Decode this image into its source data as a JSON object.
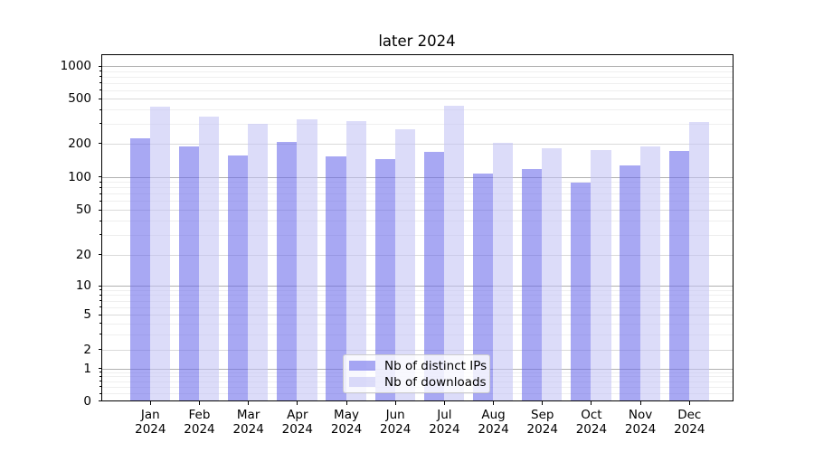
{
  "title": "later 2024",
  "colors": {
    "ips_bar": "rgba(105,105,235,0.58)",
    "downloads_bar": "rgba(195,195,245,0.58)",
    "grid_power": "#b0b0b0",
    "grid_major": "#dadada",
    "grid_minor": "#efefef",
    "spine": "#000000",
    "legend_border": "#cccccc",
    "legend_bg": "rgba(255,255,255,0.8)",
    "text": "#000000"
  },
  "legend": {
    "items": [
      {
        "label": "Nb of distinct IPs",
        "color": "ips_bar"
      },
      {
        "label": "Nb of downloads",
        "color": "downloads_bar"
      }
    ]
  },
  "chart_data": {
    "type": "bar",
    "title": "later 2024",
    "categories": [
      "Jan 2024",
      "Feb 2024",
      "Mar 2024",
      "Apr 2024",
      "May 2024",
      "Jun 2024",
      "Jul 2024",
      "Aug 2024",
      "Sep 2024",
      "Oct 2024",
      "Nov 2024",
      "Dec 2024"
    ],
    "series": [
      {
        "name": "Nb of distinct IPs",
        "values": [
          224,
          188,
          157,
          205,
          154,
          145,
          167,
          108,
          118,
          88,
          128,
          171
        ]
      },
      {
        "name": "Nb of downloads",
        "values": [
          423,
          344,
          299,
          328,
          319,
          270,
          437,
          201,
          180,
          175,
          187,
          309
        ]
      }
    ],
    "xlabel": "",
    "ylabel": "",
    "yscale": "symlog",
    "y_major_ticks": [
      0,
      1,
      2,
      5,
      10,
      20,
      50,
      100,
      200,
      500,
      1000
    ],
    "y_minor_ticks": [
      0.5,
      0.6,
      0.7,
      0.8,
      0.9,
      3,
      4,
      6,
      7,
      8,
      9,
      30,
      40,
      60,
      70,
      80,
      90,
      300,
      400,
      600,
      700,
      800,
      900
    ],
    "ylim": [
      0,
      1280
    ],
    "grid": true,
    "legend_position": "lower center"
  }
}
